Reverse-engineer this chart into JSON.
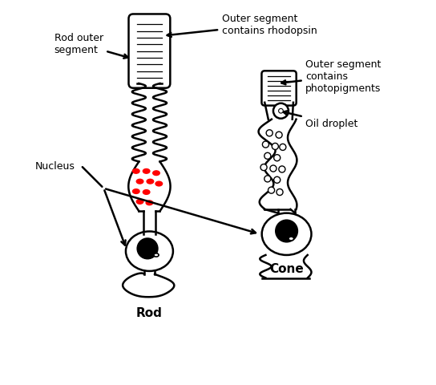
{
  "background_color": "#ffffff",
  "line_color": "#000000",
  "red_dots_color": "#ff0000",
  "label_rod_outer": "Rod outer\nsegment",
  "label_rhodopsin": "Outer segment\ncontains rhodopsin",
  "label_nucleus": "Nucleus",
  "label_photopigments": "Outer segment\ncontains\nphotopigments",
  "label_oil_droplet": "Oil droplet",
  "label_rod": "Rod",
  "label_cone": "Cone",
  "figsize": [
    5.44,
    4.81
  ],
  "dpi": 100
}
